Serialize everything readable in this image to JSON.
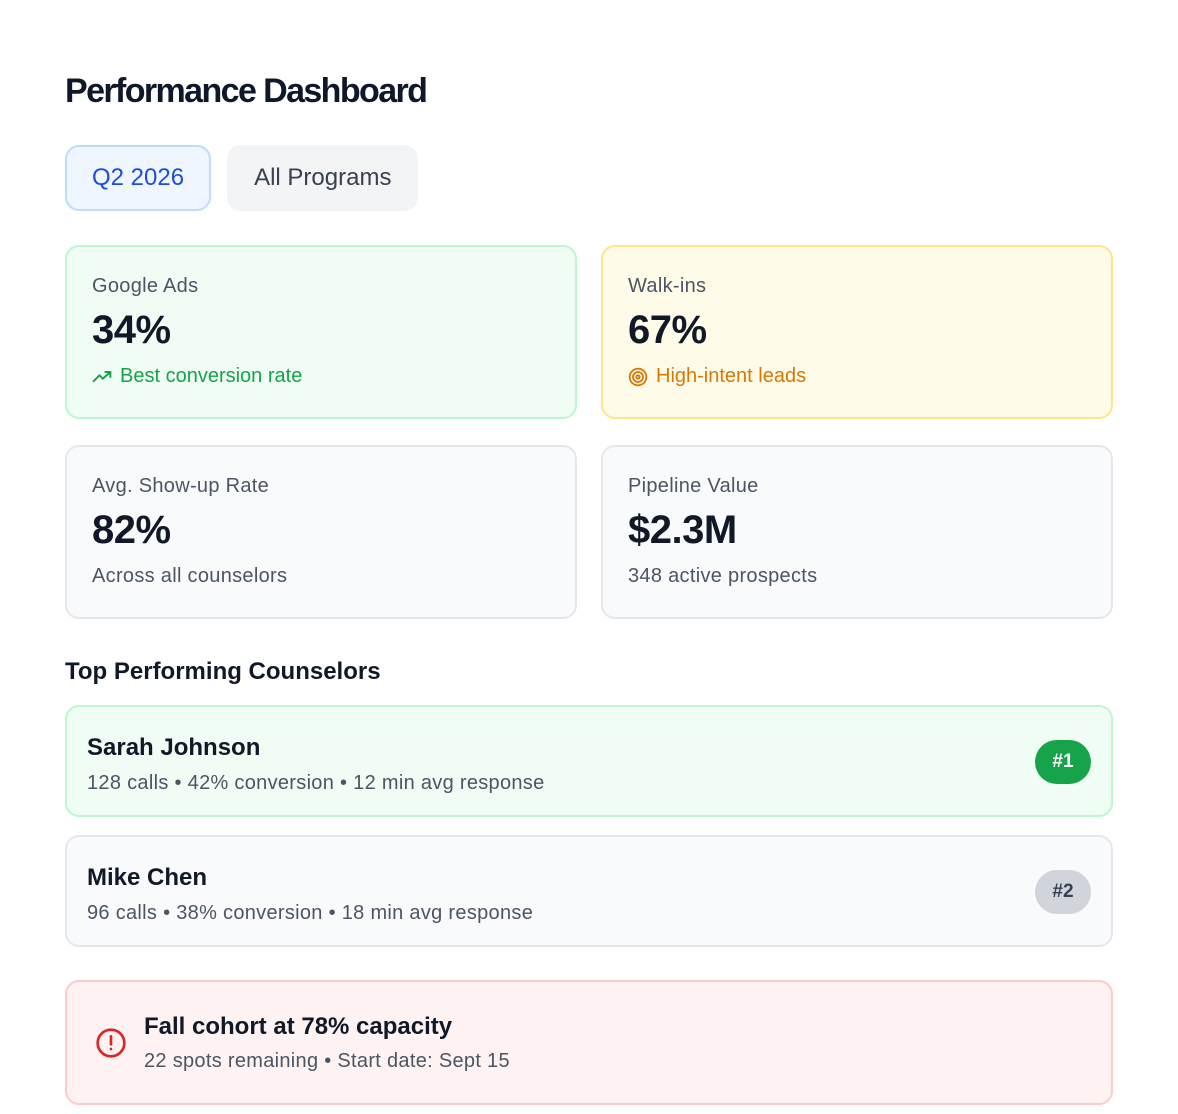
{
  "header": {
    "title": "Performance Dashboard"
  },
  "filters": [
    {
      "label": "Q2 2026",
      "selected": true
    },
    {
      "label": "All Programs",
      "selected": false
    }
  ],
  "metrics": [
    {
      "label": "Google Ads",
      "value": "34%",
      "note": "Best conversion rate",
      "icon": "trending-up-icon",
      "tone": "green"
    },
    {
      "label": "Walk-ins",
      "value": "67%",
      "note": "High-intent leads",
      "icon": "target-icon",
      "tone": "yellow"
    },
    {
      "label": "Avg. Show-up Rate",
      "value": "82%",
      "note": "Across all counselors",
      "tone": "gray"
    },
    {
      "label": "Pipeline Value",
      "value": "$2.3M",
      "note": "348 active prospects",
      "tone": "gray"
    }
  ],
  "counselors": {
    "title": "Top Performing Counselors",
    "items": [
      {
        "name": "Sarah Johnson",
        "stats": "128 calls • 42% conversion • 12 min avg response",
        "rank": "#1"
      },
      {
        "name": "Mike Chen",
        "stats": "96 calls • 38% conversion • 18 min avg response",
        "rank": "#2"
      }
    ]
  },
  "alert": {
    "icon": "alert-circle-icon",
    "title": "Fall cohort at 78% capacity",
    "subtitle": "22 spots remaining • Start date: Sept 15"
  },
  "colors": {
    "accent_blue": "#1d4ed8",
    "success": "#16a34a",
    "warning": "#d97706",
    "danger": "#dc2626"
  }
}
